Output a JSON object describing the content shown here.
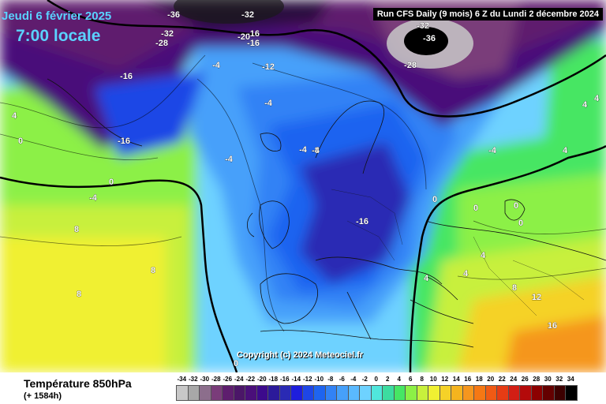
{
  "header": {
    "date_label": "Jeudi 6 février 2025",
    "time_label": "7:00 locale",
    "run_info": "Run CFS Daily (9 mois) 6 Z du Lundi 2 décembre 2024"
  },
  "footer": {
    "parameter": "Température 850hPa",
    "forecast_hours": "(+ 1584h)",
    "copyright": "Copyright (c) 2024 Meteociel.fr"
  },
  "legend": {
    "steps": [
      {
        "value": "-34",
        "color": "#c8c8c8"
      },
      {
        "value": "-32",
        "color": "#a8a8a8"
      },
      {
        "value": "-30",
        "color": "#8c6e8c"
      },
      {
        "value": "-28",
        "color": "#7a3c7a"
      },
      {
        "value": "-26",
        "color": "#5e1e6e"
      },
      {
        "value": "-24",
        "color": "#4b1668"
      },
      {
        "value": "-22",
        "color": "#4a0f7a"
      },
      {
        "value": "-20",
        "color": "#3c0a8c"
      },
      {
        "value": "-18",
        "color": "#2b1a9a"
      },
      {
        "value": "-16",
        "color": "#2a2ab4"
      },
      {
        "value": "-14",
        "color": "#1e1edc"
      },
      {
        "value": "-12",
        "color": "#1e46e6"
      },
      {
        "value": "-10",
        "color": "#1e64f0"
      },
      {
        "value": "-8",
        "color": "#3282f5"
      },
      {
        "value": "-6",
        "color": "#46a0fa"
      },
      {
        "value": "-4",
        "color": "#5ab9ff"
      },
      {
        "value": "-2",
        "color": "#6ed2ff"
      },
      {
        "value": "0",
        "color": "#50e6dc"
      },
      {
        "value": "2",
        "color": "#3cdca0"
      },
      {
        "value": "4",
        "color": "#46e664"
      },
      {
        "value": "6",
        "color": "#8cf046"
      },
      {
        "value": "8",
        "color": "#c8f03c"
      },
      {
        "value": "10",
        "color": "#f0f032"
      },
      {
        "value": "12",
        "color": "#f5d228"
      },
      {
        "value": "14",
        "color": "#f5b41e"
      },
      {
        "value": "16",
        "color": "#f5961e"
      },
      {
        "value": "18",
        "color": "#f57814"
      },
      {
        "value": "20",
        "color": "#f05a14"
      },
      {
        "value": "22",
        "color": "#e63c14"
      },
      {
        "value": "24",
        "color": "#d21e14"
      },
      {
        "value": "26",
        "color": "#b40a0a"
      },
      {
        "value": "28",
        "color": "#8c0000"
      },
      {
        "value": "30",
        "color": "#640000"
      },
      {
        "value": "32",
        "color": "#3c0000"
      },
      {
        "value": "34",
        "color": "#000000"
      }
    ]
  },
  "contour_labels": [
    {
      "text": "-36"
    },
    {
      "text": "-32"
    },
    {
      "text": "-32"
    },
    {
      "text": "-28"
    },
    {
      "text": "-20"
    },
    {
      "text": "-16"
    },
    {
      "text": "-16"
    },
    {
      "text": "-12"
    },
    {
      "text": "-4"
    },
    {
      "text": "-4"
    },
    {
      "text": "-16"
    },
    {
      "text": "-16"
    },
    {
      "text": "4"
    },
    {
      "text": "0"
    },
    {
      "text": "0"
    },
    {
      "text": "-4"
    },
    {
      "text": "-4"
    },
    {
      "text": "-8"
    },
    {
      "text": "-4"
    },
    {
      "text": "-16"
    },
    {
      "text": "0"
    },
    {
      "text": "-32"
    },
    {
      "text": "-36"
    },
    {
      "text": "-28"
    },
    {
      "text": "4"
    },
    {
      "text": "4"
    },
    {
      "text": "-4"
    },
    {
      "text": "4"
    },
    {
      "text": "0"
    },
    {
      "text": "0"
    },
    {
      "text": "0"
    },
    {
      "text": "4"
    },
    {
      "text": "4"
    },
    {
      "text": "8"
    },
    {
      "text": "12"
    },
    {
      "text": "16"
    },
    {
      "text": "-4"
    },
    {
      "text": "8"
    },
    {
      "text": "8"
    },
    {
      "text": "8"
    },
    {
      "text": "0"
    },
    {
      "text": "4"
    }
  ]
}
